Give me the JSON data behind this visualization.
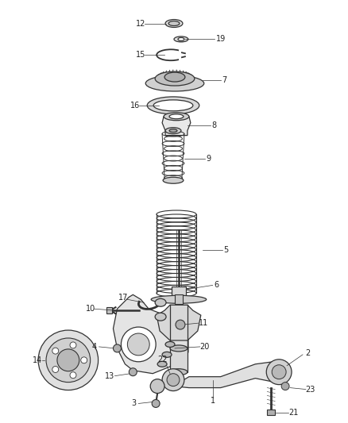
{
  "background_color": "#ffffff",
  "fig_width": 4.38,
  "fig_height": 5.33,
  "dpi": 100,
  "line_color": "#333333",
  "label_color": "#222222",
  "label_fontsize": 7.0
}
